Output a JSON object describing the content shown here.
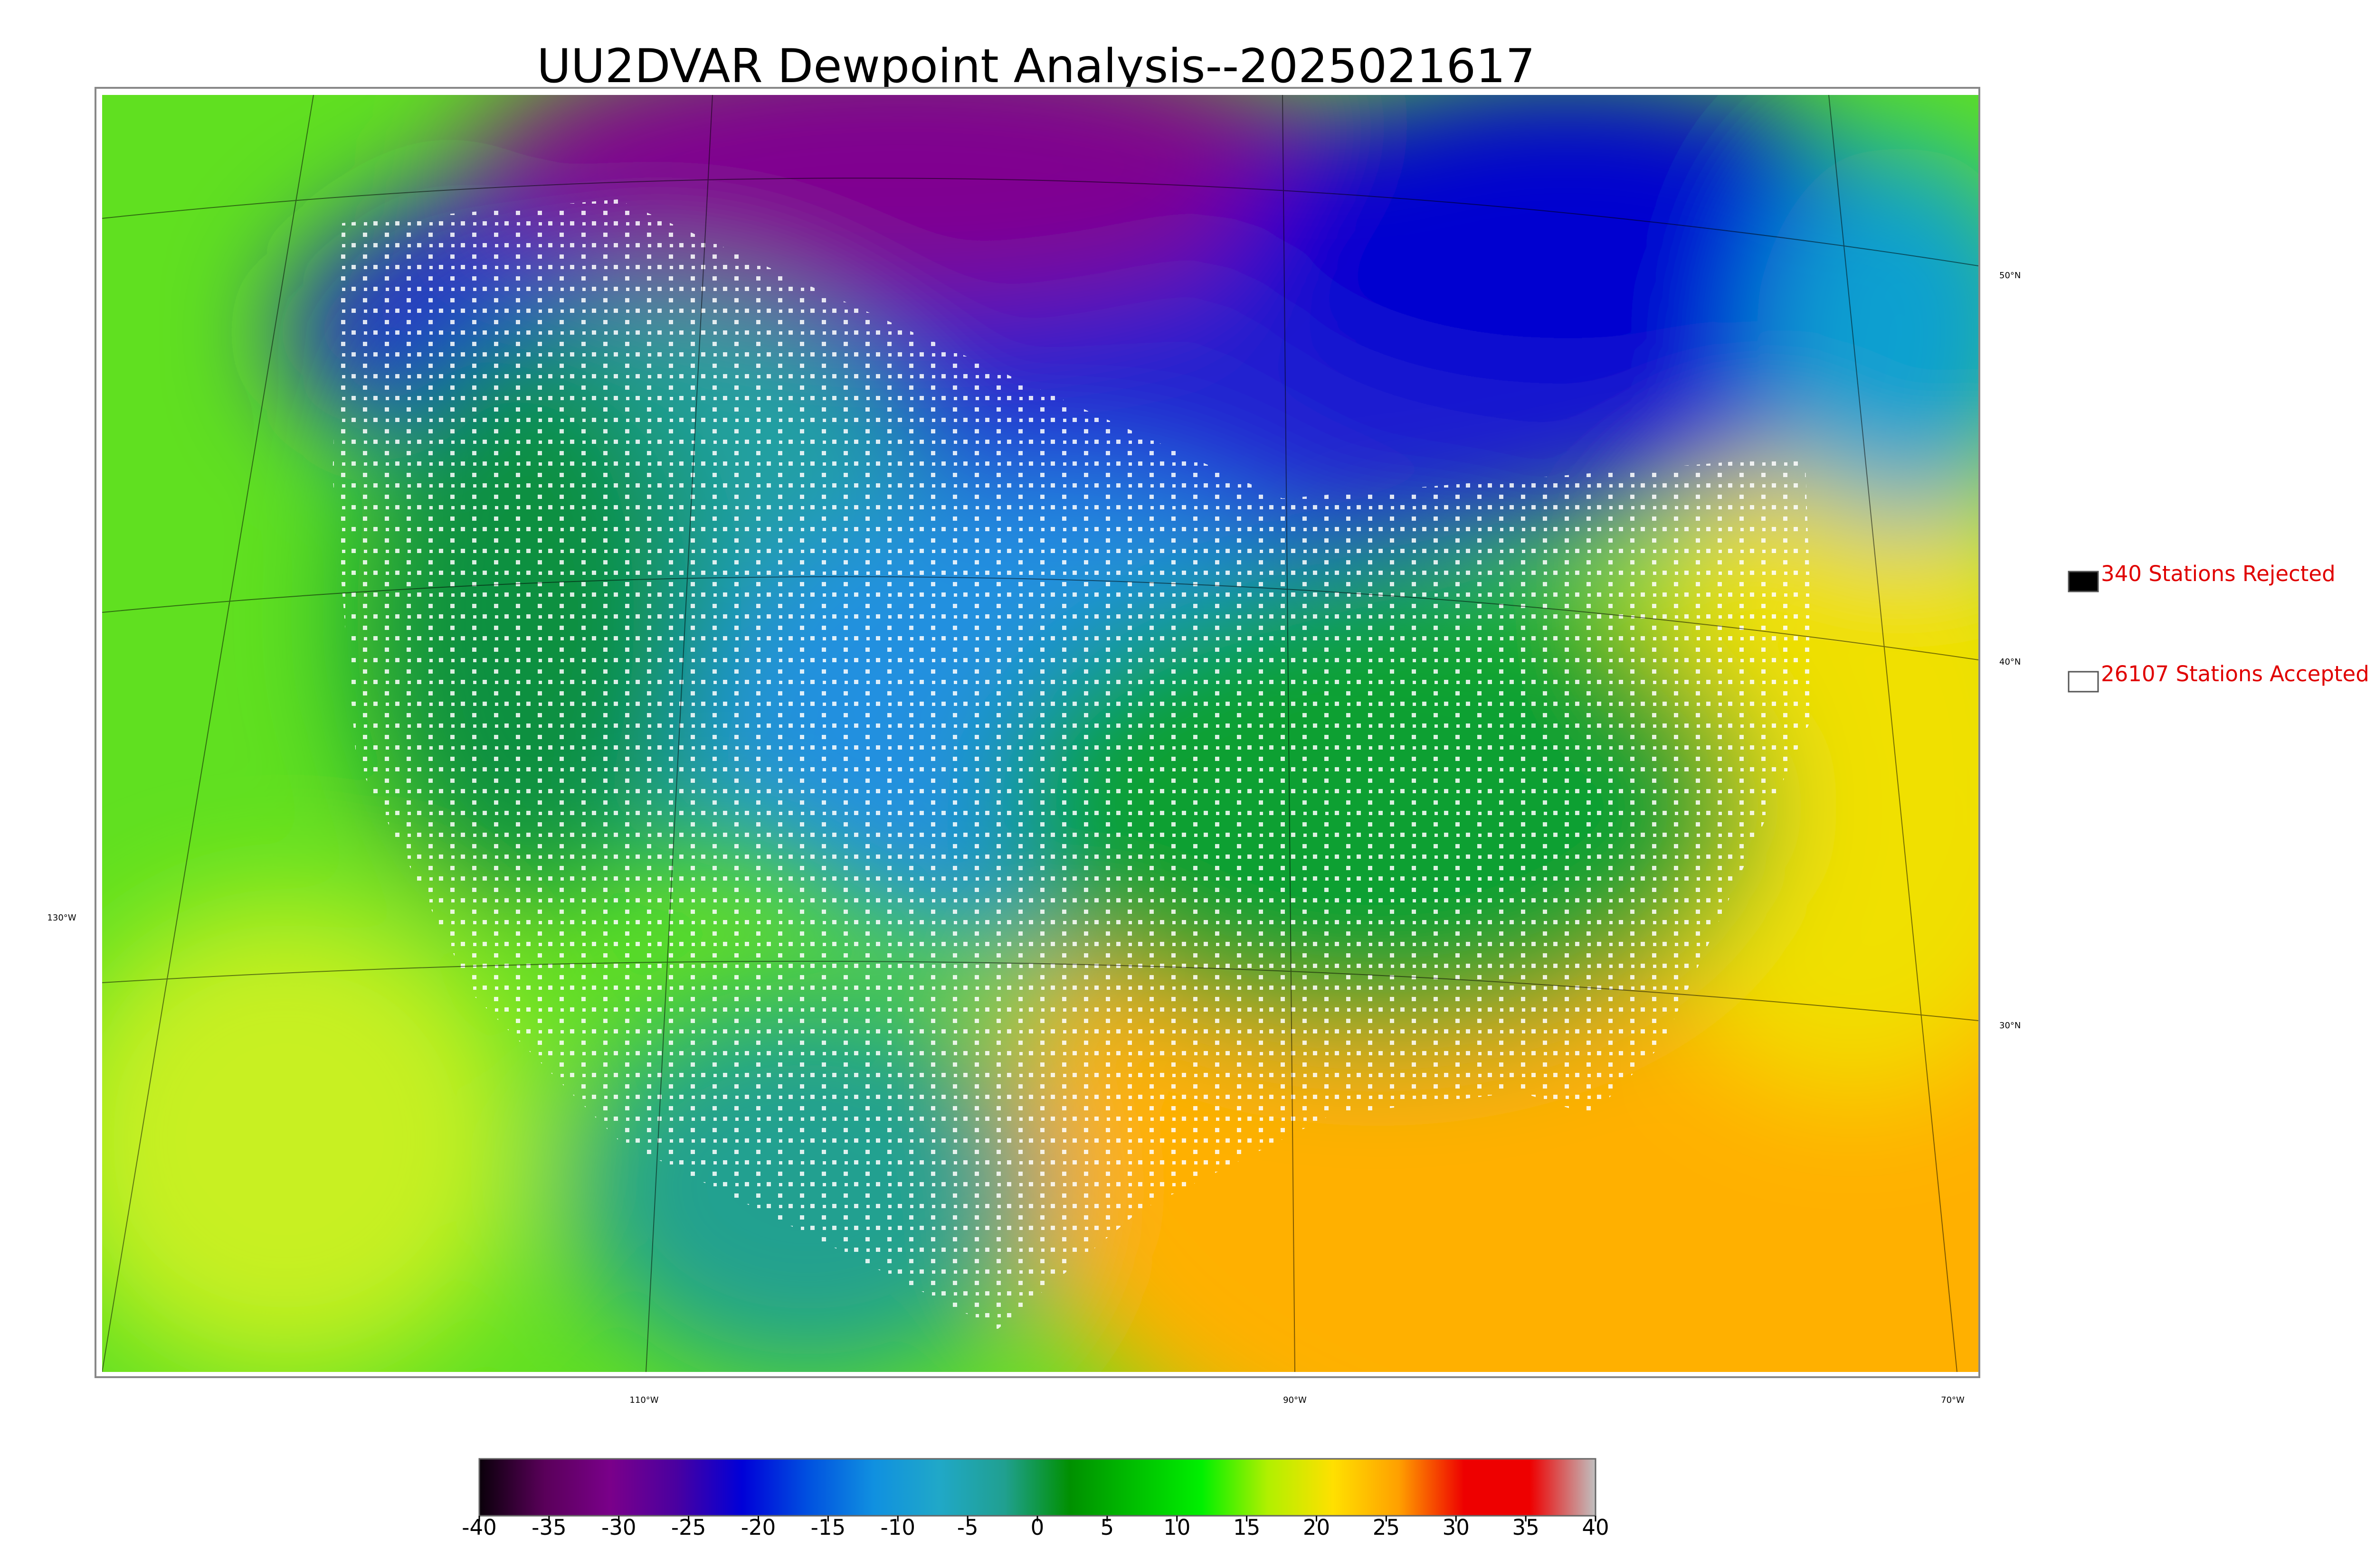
{
  "header": {
    "title": "UU2DVAR Dewpoint Analysis--2025021617"
  },
  "legend": [
    {
      "label": "340 Stations Rejected",
      "color": "#000000"
    },
    {
      "label": "26107 Stations Accepted",
      "color": "#ffffff"
    }
  ],
  "graticule": {
    "lat_labels": [
      "50°N",
      "40°N",
      "30°N"
    ],
    "lon_labels": [
      "130°W",
      "110°W",
      "90°W",
      "70°W"
    ]
  },
  "colorbar": {
    "lim": [
      -40,
      40
    ],
    "ticks": [
      -40,
      -35,
      -30,
      -25,
      -20,
      -15,
      -10,
      -5,
      0,
      5,
      10,
      15,
      20,
      25,
      30,
      35,
      40
    ],
    "colors": [
      "#0a000a",
      "#5a005a",
      "#7a008a",
      "#4a00a0",
      "#0000d8",
      "#0050e0",
      "#1090e0",
      "#20a8c8",
      "#20a090",
      "#009000",
      "#00c000",
      "#00f000",
      "#b0f000",
      "#ffe000",
      "#ffa000",
      "#ee0000",
      "#ee0000",
      "#c0c0c0"
    ]
  }
}
